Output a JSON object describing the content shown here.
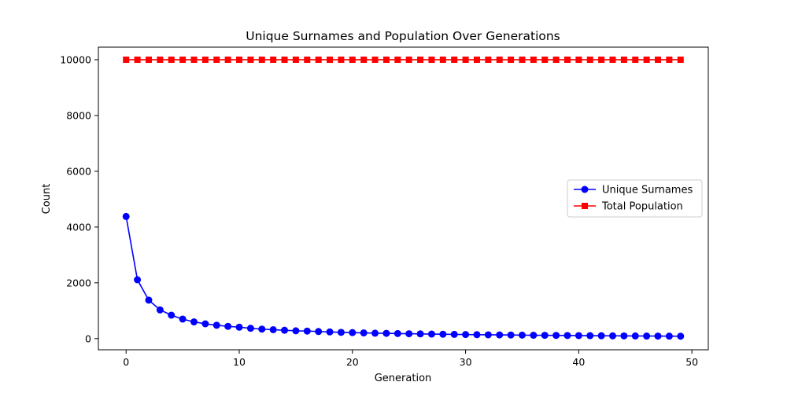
{
  "chart_data": {
    "type": "line",
    "title": "Unique Surnames and Population Over Generations",
    "xlabel": "Generation",
    "ylabel": "Count",
    "xlim": [
      -2.45,
      51.45
    ],
    "ylim": [
      -400,
      10450
    ],
    "x_ticks": [
      0,
      10,
      20,
      30,
      40,
      50
    ],
    "y_ticks": [
      0,
      2000,
      4000,
      6000,
      8000,
      10000
    ],
    "grid": false,
    "legend_position": "center-right",
    "x": [
      0,
      1,
      2,
      3,
      4,
      5,
      6,
      7,
      8,
      9,
      10,
      11,
      12,
      13,
      14,
      15,
      16,
      17,
      18,
      19,
      20,
      21,
      22,
      23,
      24,
      25,
      26,
      27,
      28,
      29,
      30,
      31,
      32,
      33,
      34,
      35,
      36,
      37,
      38,
      39,
      40,
      41,
      42,
      43,
      44,
      45,
      46,
      47,
      48,
      49
    ],
    "series": [
      {
        "name": "Unique Surnames",
        "color": "#0000ff",
        "marker": "circle",
        "values": [
          4380,
          2110,
          1380,
          1030,
          840,
          700,
          600,
          530,
          480,
          440,
          410,
          370,
          340,
          320,
          300,
          280,
          270,
          255,
          240,
          225,
          215,
          205,
          195,
          190,
          182,
          175,
          170,
          163,
          157,
          152,
          146,
          141,
          137,
          133,
          129,
          125,
          121,
          118,
          115,
          112,
          109,
          106,
          103,
          100,
          98,
          95,
          93,
          91,
          89,
          86
        ]
      },
      {
        "name": "Total Population",
        "color": "#ff0000",
        "marker": "square",
        "values": [
          10000,
          10000,
          10000,
          10000,
          10000,
          10000,
          10000,
          10000,
          10000,
          10000,
          10000,
          10000,
          10000,
          10000,
          10000,
          10000,
          10000,
          10000,
          10000,
          10000,
          10000,
          10000,
          10000,
          10000,
          10000,
          10000,
          10000,
          10000,
          10000,
          10000,
          10000,
          10000,
          10000,
          10000,
          10000,
          10000,
          10000,
          10000,
          10000,
          10000,
          10000,
          10000,
          10000,
          10000,
          10000,
          10000,
          10000,
          10000,
          10000,
          10000
        ]
      }
    ]
  }
}
